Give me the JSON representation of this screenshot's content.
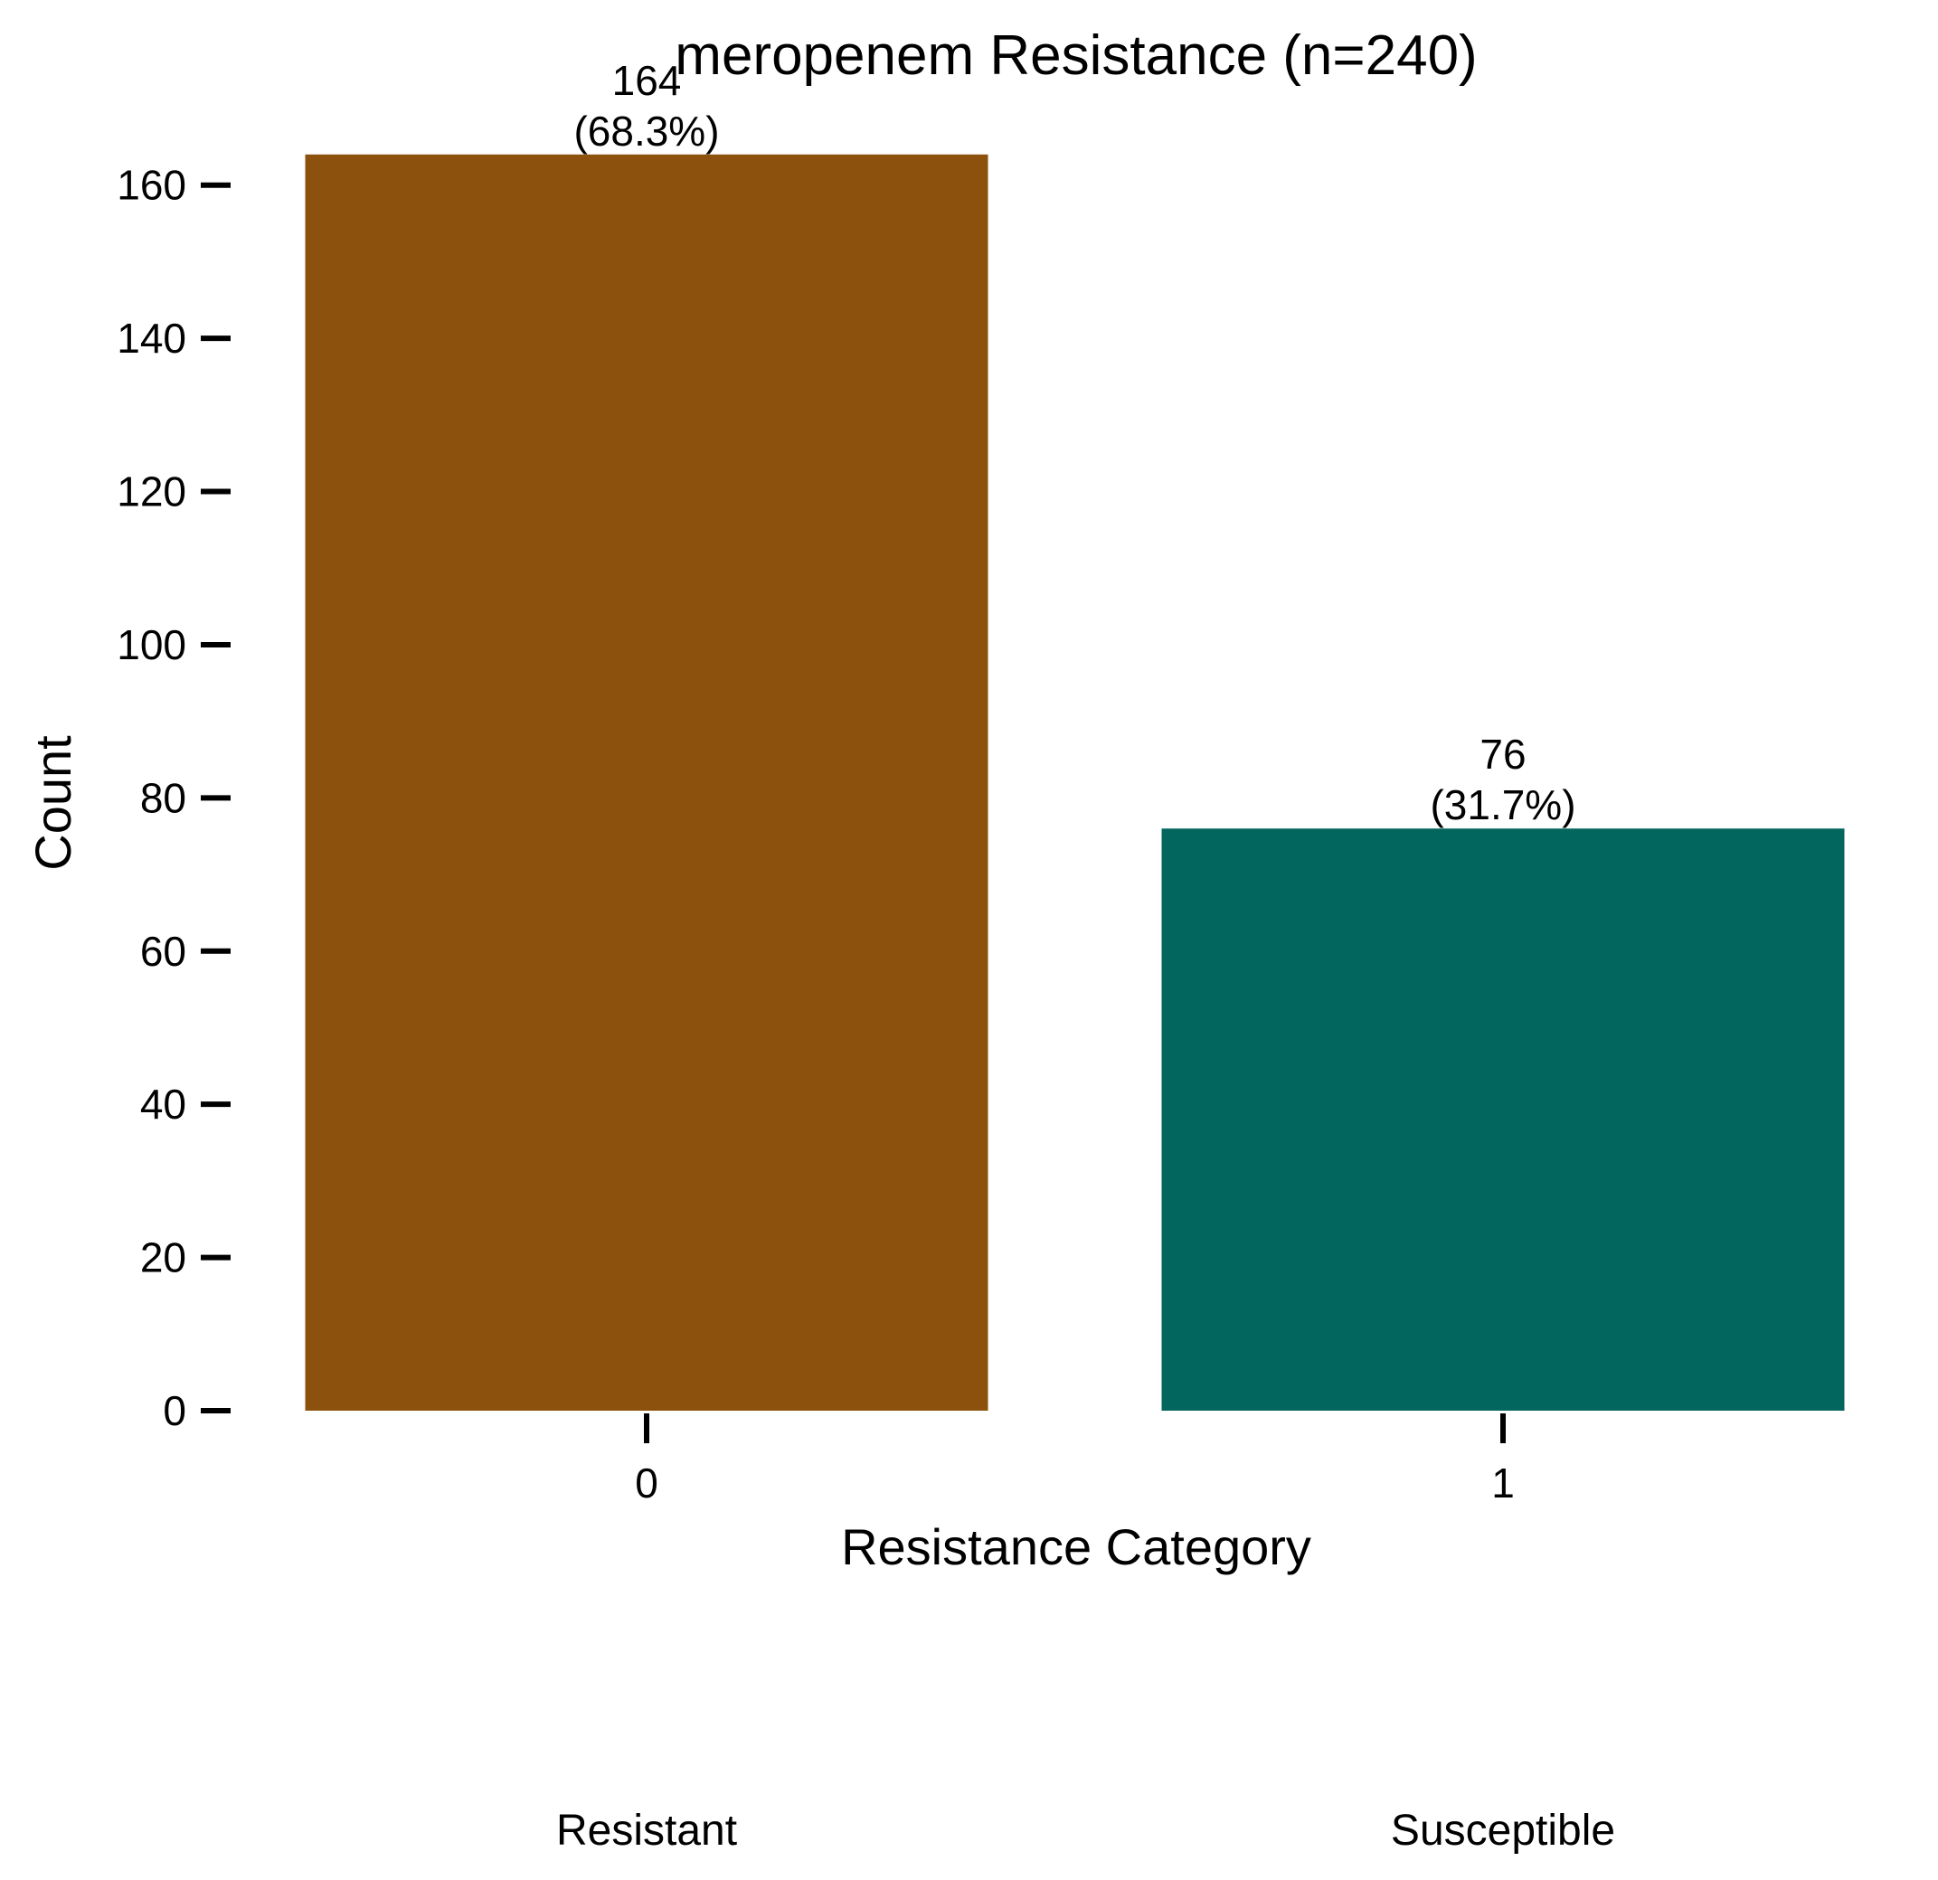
{
  "chart_data": {
    "type": "bar",
    "title": "meropenem Resistance (n=240)",
    "xlabel": "Resistance Category",
    "ylabel": "Count",
    "categories": [
      "0",
      "1"
    ],
    "values": [
      164,
      76
    ],
    "data_labels": [
      "164\n(68.3%)",
      "76\n(31.7%)"
    ],
    "category_names": [
      "Resistant",
      "Susceptible"
    ],
    "bar_colors": [
      "#8B510D",
      "#03665E"
    ],
    "ylim": [
      0,
      170
    ],
    "yticks": [
      0,
      20,
      40,
      60,
      80,
      100,
      120,
      140,
      160
    ],
    "grid": false,
    "legend": "none"
  }
}
